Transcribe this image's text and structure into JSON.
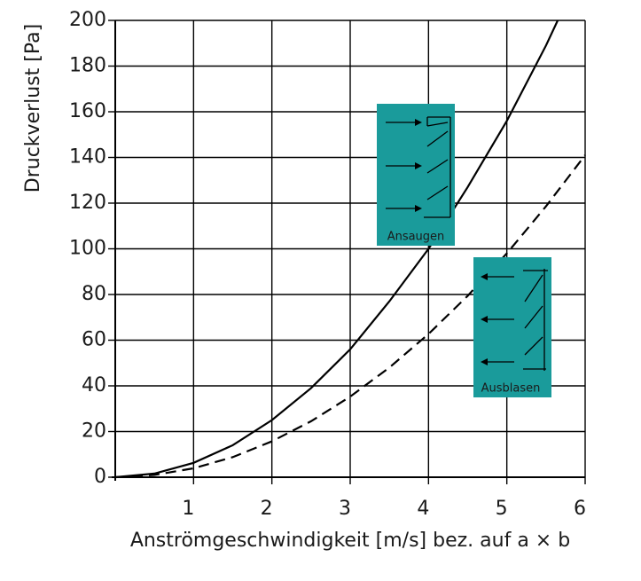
{
  "chart_data": {
    "type": "line",
    "xlabel": "Anströmgeschwindigkeit [m/s] bez. auf a × b",
    "ylabel": "Druckverlust [Pa]",
    "xlim": [
      0,
      6
    ],
    "xticks": [
      1,
      2,
      3,
      4,
      5,
      6
    ],
    "ylim": [
      0,
      200
    ],
    "yticks": [
      0,
      20,
      40,
      60,
      80,
      100,
      120,
      140,
      160,
      180,
      200
    ],
    "grid": true,
    "series": [
      {
        "name": "Ansaugen",
        "color": "#000000",
        "dash": false,
        "x": [
          0,
          0.5,
          1,
          1.5,
          2,
          2.5,
          3,
          3.5,
          4,
          4.5,
          5,
          5.5,
          5.65
        ],
        "values": [
          0,
          1.6,
          6.3,
          14,
          25,
          39,
          56,
          77,
          100,
          127,
          156,
          189,
          200
        ]
      },
      {
        "name": "Ausblasen",
        "color": "#000000",
        "dash": true,
        "x": [
          0,
          0.5,
          1,
          1.5,
          2,
          2.5,
          3,
          3.5,
          4,
          4.5,
          5,
          5.5,
          6
        ],
        "values": [
          0,
          1,
          3.9,
          8.8,
          15.7,
          24.5,
          35.3,
          48,
          62.7,
          79.4,
          98,
          118.6,
          141
        ]
      }
    ]
  }
}
